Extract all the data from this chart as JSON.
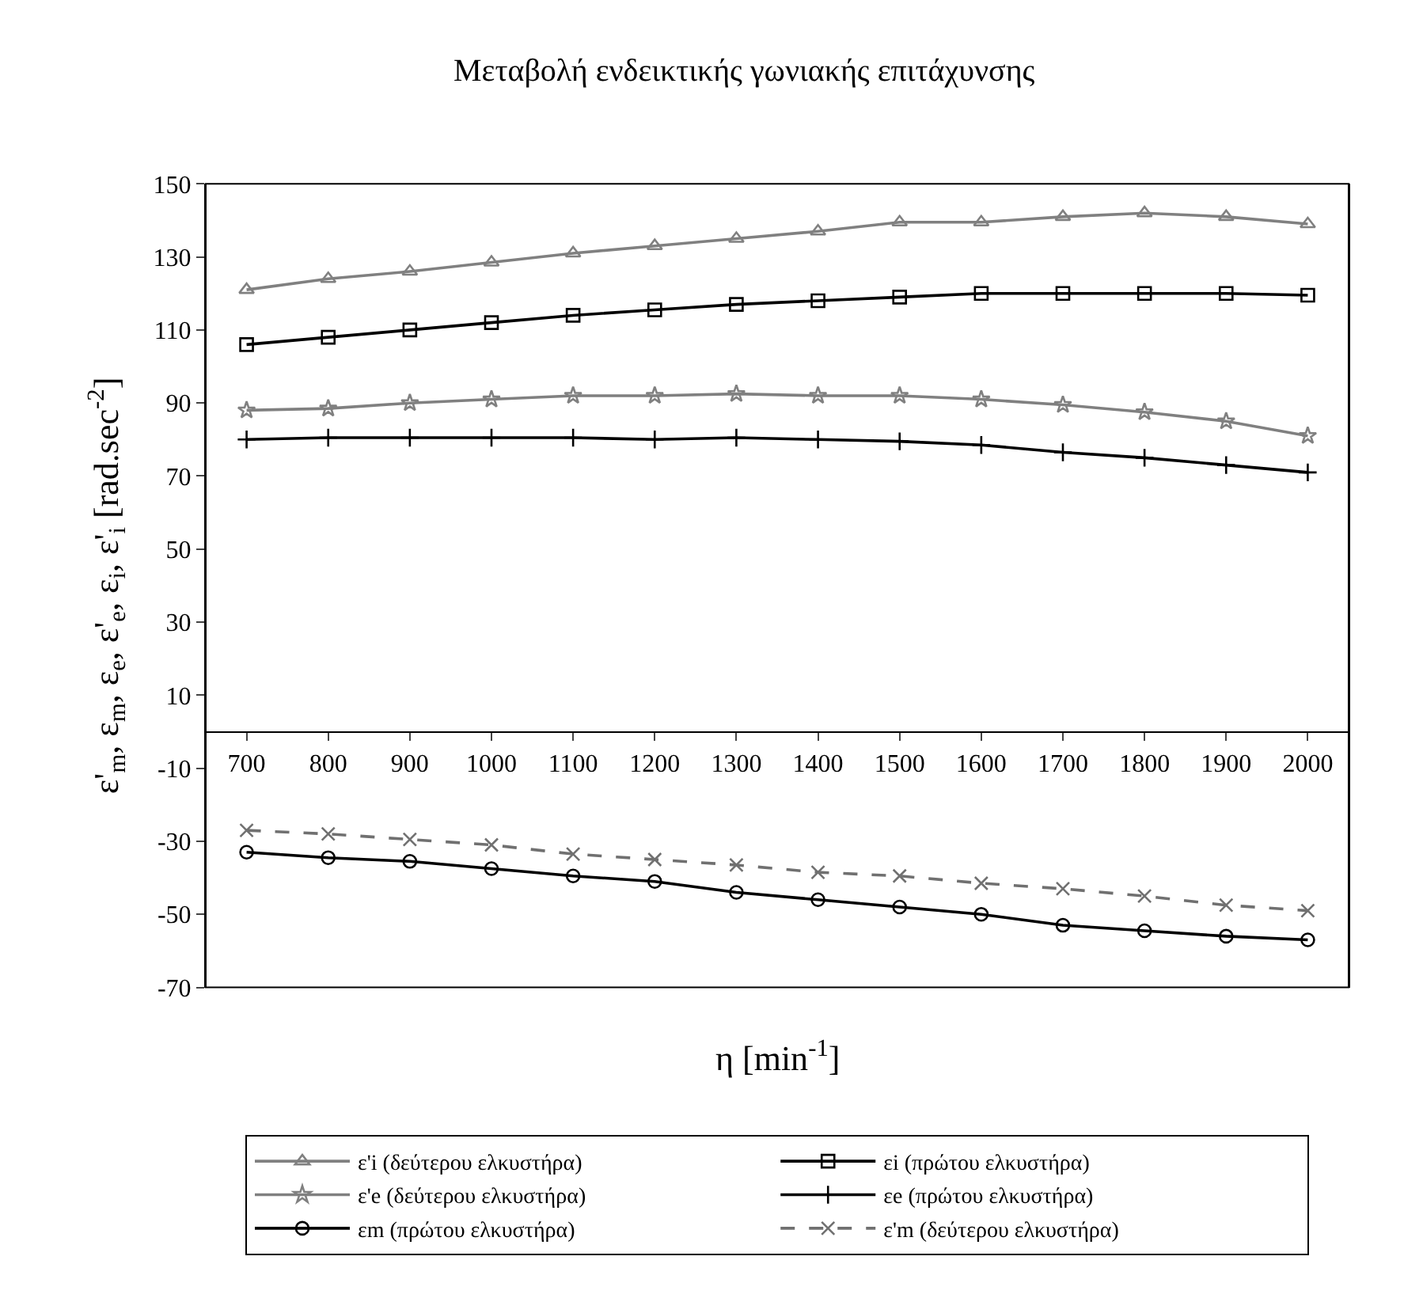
{
  "chart_data": {
    "type": "line",
    "title": "Μεταβολή ενδεικτικής γωνιακής επιτάχυνσης",
    "xlabel": "η [min$^{-1}$]",
    "ylabel": "ε'$_{m}$, ε$_{m}$, ε$_{e}$, ε'$_{e}$, ε$_{i}$, ε'$_{i}$ [rad.sec$^{-2}$]",
    "categories": [
      "700",
      "800",
      "900",
      "1000",
      "1100",
      "1200",
      "1300",
      "1400",
      "1500",
      "1600",
      "1700",
      "1800",
      "1900",
      "2000"
    ],
    "ylim": [
      -70,
      150
    ],
    "yticks": [
      150,
      130,
      110,
      90,
      70,
      50,
      30,
      10,
      -10,
      -30,
      -50,
      -70
    ],
    "grid": false,
    "legend": "bottom",
    "series": [
      {
        "name": "ε'i (δεύτερου ελκυστήρα)",
        "color": "#808080",
        "marker": "triangle",
        "values": [
          121,
          124,
          126,
          128.5,
          131,
          133,
          135,
          137,
          139.5,
          139.5,
          141,
          142,
          141,
          139
        ]
      },
      {
        "name": "εi (πρώτου ελκυστήρα)",
        "color": "#000000",
        "marker": "square",
        "values": [
          106,
          108,
          110,
          112,
          114,
          115.5,
          117,
          118,
          119,
          120,
          120,
          120,
          120,
          119.5
        ]
      },
      {
        "name": "ε'e (δεύτερου ελκυστήρα)",
        "color": "#808080",
        "marker": "star",
        "values": [
          88,
          88.5,
          90,
          91,
          92,
          92,
          92.5,
          92,
          92,
          91,
          89.5,
          87.5,
          85,
          81
        ]
      },
      {
        "name": "εe (πρώτου ελκυστήρα)",
        "color": "#000000",
        "marker": "cross",
        "values": [
          80,
          80.5,
          80.5,
          80.5,
          80.5,
          80,
          80.5,
          80,
          79.5,
          78.5,
          76.5,
          75,
          73,
          71
        ]
      },
      {
        "name": "εm (πρώτου ελκυστήρα)",
        "color": "#000000",
        "marker": "circle",
        "values": [
          -33,
          -34.5,
          -35.5,
          -37.5,
          -39.5,
          -41,
          -44,
          -46,
          -48,
          -50,
          -53,
          -54.5,
          -56,
          -57
        ]
      },
      {
        "name": "ε'm (δεύτερου ελκυστήρα)",
        "color": "#707070",
        "marker": "x",
        "line_style": "dashed",
        "values": [
          -27,
          -28,
          -29.5,
          -31,
          -33.5,
          -35,
          -36.5,
          -38.5,
          -39.5,
          -41.5,
          -43,
          -45,
          -47.5,
          -49
        ]
      }
    ]
  }
}
